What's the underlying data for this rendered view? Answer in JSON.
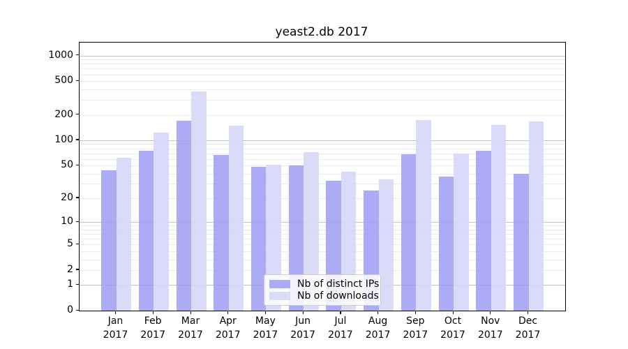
{
  "chart_data": {
    "type": "bar",
    "title": "yeast2.db 2017",
    "yscale": "log1p",
    "grid": "both",
    "categories": [
      "Jan",
      "Feb",
      "Mar",
      "Apr",
      "May",
      "Jun",
      "Jul",
      "Aug",
      "Sep",
      "Oct",
      "Nov",
      "Dec"
    ],
    "year": "2017",
    "series": [
      {
        "name": "Nb of distinct IPs",
        "color": "#9d9df5",
        "values": [
          44,
          75,
          169,
          67,
          48,
          50,
          33,
          25,
          68,
          37,
          75,
          40
        ]
      },
      {
        "name": "Nb of downloads",
        "color": "#d6d6f8",
        "values": [
          62,
          123,
          375,
          150,
          51,
          72,
          42,
          34,
          175,
          70,
          151,
          166
        ]
      }
    ],
    "yticks": [
      0,
      1,
      2,
      5,
      10,
      20,
      50,
      100,
      200,
      500,
      1000
    ],
    "ylim": [
      0,
      1420
    ],
    "major_grid_values": [
      1,
      10,
      100,
      1000
    ],
    "minor_grid_values": [
      2,
      3,
      4,
      5,
      6,
      7,
      8,
      9,
      20,
      30,
      40,
      50,
      60,
      70,
      80,
      90,
      200,
      300,
      400,
      500,
      600,
      700,
      800,
      900
    ],
    "legend": {
      "position": "lower-center",
      "items": [
        "Nb of distinct IPs",
        "Nb of downloads"
      ]
    },
    "colors": {
      "major_grid": "#c2c2c2",
      "minor_grid": "#ebebeb",
      "spine": "#000000",
      "text": "#000000"
    }
  }
}
